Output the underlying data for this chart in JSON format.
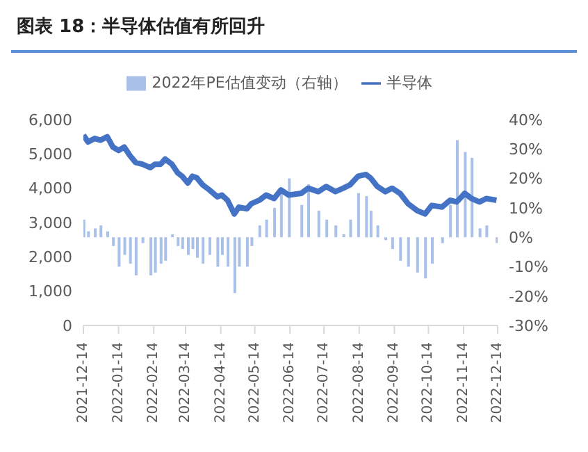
{
  "chart_data": {
    "type": "bar",
    "title": "图表 18：半导体估值有所回升",
    "x": [
      "2021-12-14",
      "2021-12-18",
      "2021-12-24",
      "2021-12-29",
      "2022-01-04",
      "2022-01-09",
      "2022-01-14",
      "2022-01-19",
      "2022-01-24",
      "2022-01-29",
      "2022-02-04",
      "2022-02-11",
      "2022-02-15",
      "2022-02-20",
      "2022-02-24",
      "2022-03-02",
      "2022-03-07",
      "2022-03-11",
      "2022-03-16",
      "2022-03-20",
      "2022-03-24",
      "2022-03-29",
      "2022-04-04",
      "2022-04-11",
      "2022-04-15",
      "2022-04-20",
      "2022-04-26",
      "2022-04-30",
      "2022-05-07",
      "2022-05-11",
      "2022-05-18",
      "2022-05-24",
      "2022-05-31",
      "2022-06-06",
      "2022-06-13",
      "2022-06-24",
      "2022-06-30",
      "2022-07-09",
      "2022-07-16",
      "2022-07-24",
      "2022-07-31",
      "2022-08-06",
      "2022-08-13",
      "2022-08-20",
      "2022-08-24",
      "2022-08-30",
      "2022-09-06",
      "2022-09-12",
      "2022-09-19",
      "2022-09-26",
      "2022-10-04",
      "2022-10-11",
      "2022-10-17",
      "2022-10-26",
      "2022-11-02",
      "2022-11-08",
      "2022-11-15",
      "2022-11-21",
      "2022-11-28",
      "2022-12-04",
      "2022-12-13"
    ],
    "series": [
      {
        "name": "2022年PE估值变动（右轴）",
        "axis": "y2",
        "color": "#a9c1e8",
        "values": [
          6,
          2,
          3,
          4,
          2,
          -3,
          -10,
          -6,
          -9,
          -13,
          -2,
          -13,
          -12,
          -9,
          -8,
          1,
          -3,
          -4,
          -6,
          -4,
          -7,
          -9,
          -6,
          -10,
          -6,
          -10,
          -19,
          -10,
          -10,
          -3,
          4,
          6,
          10,
          15,
          20,
          11,
          18,
          9,
          6,
          4,
          1,
          6,
          15,
          14,
          9,
          4,
          -1,
          -4,
          -8,
          -10,
          -12,
          -14,
          -9,
          -2,
          11,
          33,
          29,
          27,
          3,
          4,
          -2
        ]
      },
      {
        "name": "半导体",
        "type": "line",
        "color": "#4472c4",
        "values": [
          5550,
          5350,
          5450,
          5400,
          5500,
          5200,
          5100,
          5200,
          4950,
          4750,
          4700,
          4600,
          4700,
          4700,
          4850,
          4700,
          4450,
          4350,
          4150,
          4350,
          4300,
          4100,
          3950,
          3750,
          3800,
          3650,
          3250,
          3450,
          3400,
          3550,
          3650,
          3800,
          3700,
          3950,
          3800,
          3850,
          4000,
          3900,
          4050,
          3900,
          4000,
          4100,
          4350,
          4400,
          4300,
          4050,
          3900,
          4000,
          3850,
          3550,
          3350,
          3250,
          3500,
          3450,
          3650,
          3600,
          3850,
          3700,
          3600,
          3700,
          3650
        ]
      }
    ],
    "xlim": [
      "2021-12-14",
      "2022-12-14"
    ],
    "xticks": [
      "2021-12-14",
      "2022-01-14",
      "2022-02-14",
      "2022-03-14",
      "2022-04-14",
      "2022-05-14",
      "2022-06-14",
      "2022-07-14",
      "2022-08-14",
      "2022-09-14",
      "2022-10-14",
      "2022-11-14",
      "2022-12-14"
    ],
    "ylim": [
      0,
      6000
    ],
    "yticks": [
      0,
      {
        "value": 1000,
        "label": "1,000"
      },
      {
        "value": 2000,
        "label": "2,000"
      },
      {
        "value": 3000,
        "label": "3,000"
      },
      {
        "value": 4000,
        "label": "4,000"
      },
      {
        "value": 5000,
        "label": "5,000"
      },
      {
        "value": 6000,
        "label": "6,000"
      }
    ],
    "y2lim": [
      -30,
      40
    ],
    "y2ticks": [
      {
        "value": -30,
        "label": "-30%"
      },
      {
        "value": -20,
        "label": "-20%"
      },
      {
        "value": -10,
        "label": "-10%"
      },
      {
        "value": 0,
        "label": "0%"
      },
      {
        "value": 10,
        "label": "10%"
      },
      {
        "value": 20,
        "label": "20%"
      },
      {
        "value": 30,
        "label": "30%"
      },
      {
        "value": 40,
        "label": "40%"
      }
    ],
    "legend": "top",
    "grid": false
  }
}
